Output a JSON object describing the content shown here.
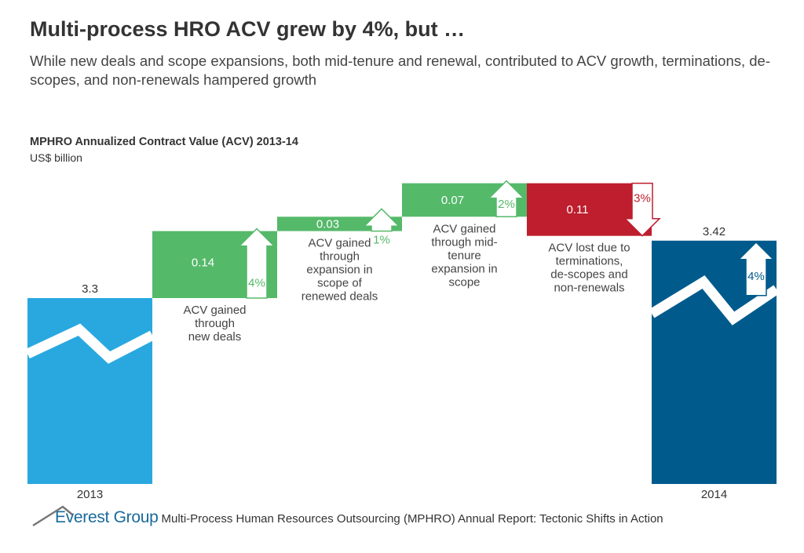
{
  "header": {
    "title": "Multi-process HRO ACV grew by 4%, but …",
    "subtitle": "While new deals and scope expansions, both mid-tenure and renewal, contributed to ACV growth, terminations, de-scopes, and non-renewals hampered growth"
  },
  "chart_data": {
    "type": "waterfall",
    "title": "MPHRO Annualized Contract Value (ACV) 2013-14",
    "ylabel": "US$ billion",
    "steps": [
      {
        "kind": "total",
        "value": 3.3,
        "label": "3.3",
        "category": "2013",
        "color": "#29a8e0"
      },
      {
        "kind": "increase",
        "value": 0.14,
        "label": "0.14",
        "pct": "4%",
        "description": [
          "ACV gained",
          "through",
          "new deals"
        ],
        "color": "#55b96a"
      },
      {
        "kind": "increase",
        "value": 0.03,
        "label": "0.03",
        "pct": "1%",
        "description": [
          "ACV gained",
          "through",
          "expansion in",
          "scope of",
          "renewed deals"
        ],
        "color": "#55b96a"
      },
      {
        "kind": "increase",
        "value": 0.07,
        "label": "0.07",
        "pct": "2%",
        "description": [
          "ACV gained",
          "through mid-",
          "tenure",
          "expansion in",
          "scope"
        ],
        "color": "#55b96a"
      },
      {
        "kind": "decrease",
        "value": 0.11,
        "label": "0.11",
        "pct": "3%",
        "description": [
          "ACV lost due to",
          "terminations,",
          "de-scopes and",
          "non-renewals"
        ],
        "color": "#be1e2d"
      },
      {
        "kind": "total",
        "value": 3.42,
        "label": "3.42",
        "pct": "4%",
        "category": "2014",
        "color": "#005b8c"
      }
    ]
  },
  "footer": {
    "brand": "Everest Group",
    "report": "Multi-Process Human Resources Outsourcing (MPHRO) Annual Report: Tectonic Shifts in Action"
  }
}
